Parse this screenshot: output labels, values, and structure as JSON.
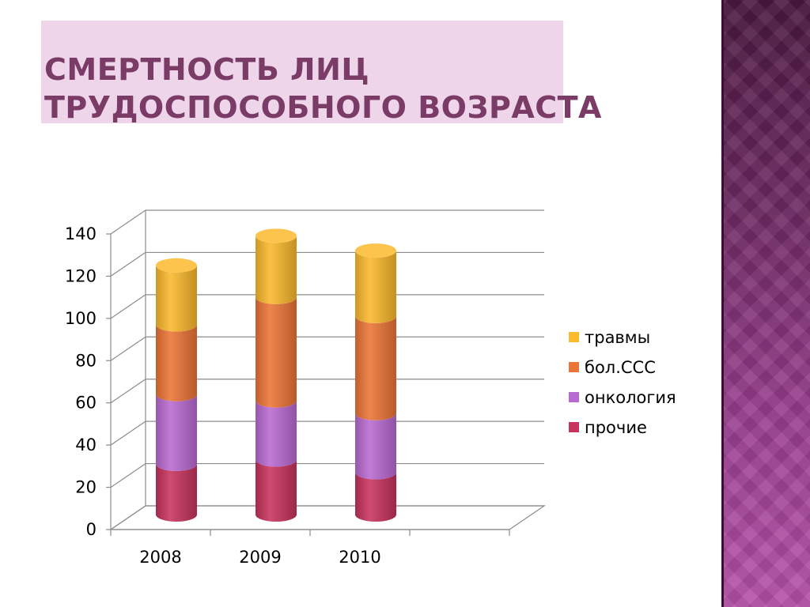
{
  "title": {
    "line1": "СМЕРТНОСТЬ ЛИЦ",
    "line2": "ТРУДОСПОСОБНОГО ВОЗРАСТА"
  },
  "colors": {
    "title_bg": "#eed5ea",
    "title_text": "#7a3c66",
    "sidebar": "#7a2d6e"
  },
  "chart_data": {
    "type": "bar",
    "stacked": true,
    "style": "3d-cylinder",
    "categories": [
      "2008",
      "2009",
      "2010"
    ],
    "series": [
      {
        "name": "прочие",
        "color": "#c8325e",
        "values": [
          24,
          26,
          20
        ]
      },
      {
        "name": "онкология",
        "color": "#b96ad2",
        "values": [
          33,
          28,
          28
        ]
      },
      {
        "name": "бол.ССС",
        "color": "#ec7436",
        "values": [
          33,
          49,
          46
        ]
      },
      {
        "name": "травмы",
        "color": "#fbb92c",
        "values": [
          28,
          29,
          31
        ]
      }
    ],
    "ylim": [
      0,
      140
    ],
    "yticks": [
      "0",
      "20",
      "40",
      "60",
      "80",
      "100",
      "120",
      "140"
    ],
    "grid": true,
    "legend_position": "right",
    "legend_order": [
      "травмы",
      "бол.ССС",
      "онкология",
      "прочие"
    ]
  }
}
